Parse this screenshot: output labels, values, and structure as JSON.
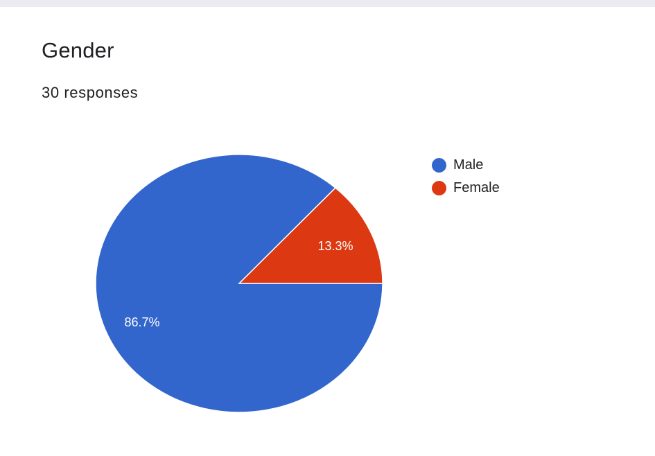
{
  "card": {
    "title": "Gender",
    "subtitle": "30 responses"
  },
  "chart_data": {
    "type": "pie",
    "title": "Gender",
    "subtitle": "30 responses",
    "categories": [
      "Male",
      "Female"
    ],
    "values": [
      86.7,
      13.3
    ],
    "value_unit": "%",
    "labels": [
      "86.7%",
      "13.3%"
    ],
    "colors": [
      "#3366cc",
      "#dc3912"
    ],
    "start_angle_deg": 0,
    "direction": "counter-clockwise from 3 o'clock",
    "legend_position": "right"
  }
}
